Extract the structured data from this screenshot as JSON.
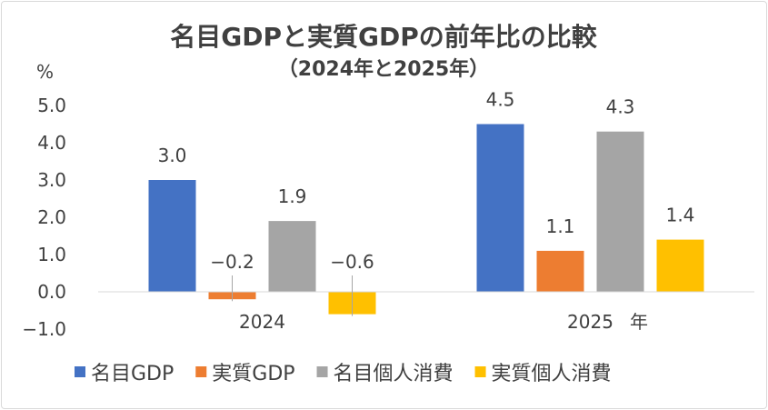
{
  "chart_data": {
    "type": "bar",
    "title": "名目GDPと実質GDPの前年比の比較",
    "subtitle": "（2024年と2025年）",
    "y_unit_label": "%",
    "x_unit_label": "年",
    "categories": [
      "2024",
      "2025"
    ],
    "series": [
      {
        "name": "名目GDP",
        "values": [
          3.0,
          4.5
        ],
        "labels": [
          "3.0",
          "4.5"
        ],
        "color": "#4472c4"
      },
      {
        "name": "実質GDP",
        "values": [
          -0.2,
          1.1
        ],
        "labels": [
          "−0.2",
          "1.1"
        ],
        "color": "#ed7d31"
      },
      {
        "name": "名目個人消費",
        "values": [
          1.9,
          4.3
        ],
        "labels": [
          "1.9",
          "4.3"
        ],
        "color": "#a5a5a5"
      },
      {
        "name": "実質個人消費",
        "values": [
          -0.6,
          1.4
        ],
        "labels": [
          "−0.6",
          "1.4"
        ],
        "color": "#ffc000"
      }
    ],
    "ylim": [
      -1.0,
      5.0
    ],
    "yticks": [
      5.0,
      4.0,
      3.0,
      2.0,
      1.0,
      0.0,
      -1.0
    ],
    "ytick_labels": [
      "5.0",
      "4.0",
      "3.0",
      "2.0",
      "1.0",
      "0.0",
      "−1.0"
    ],
    "grid": false,
    "legend_position": "bottom"
  }
}
